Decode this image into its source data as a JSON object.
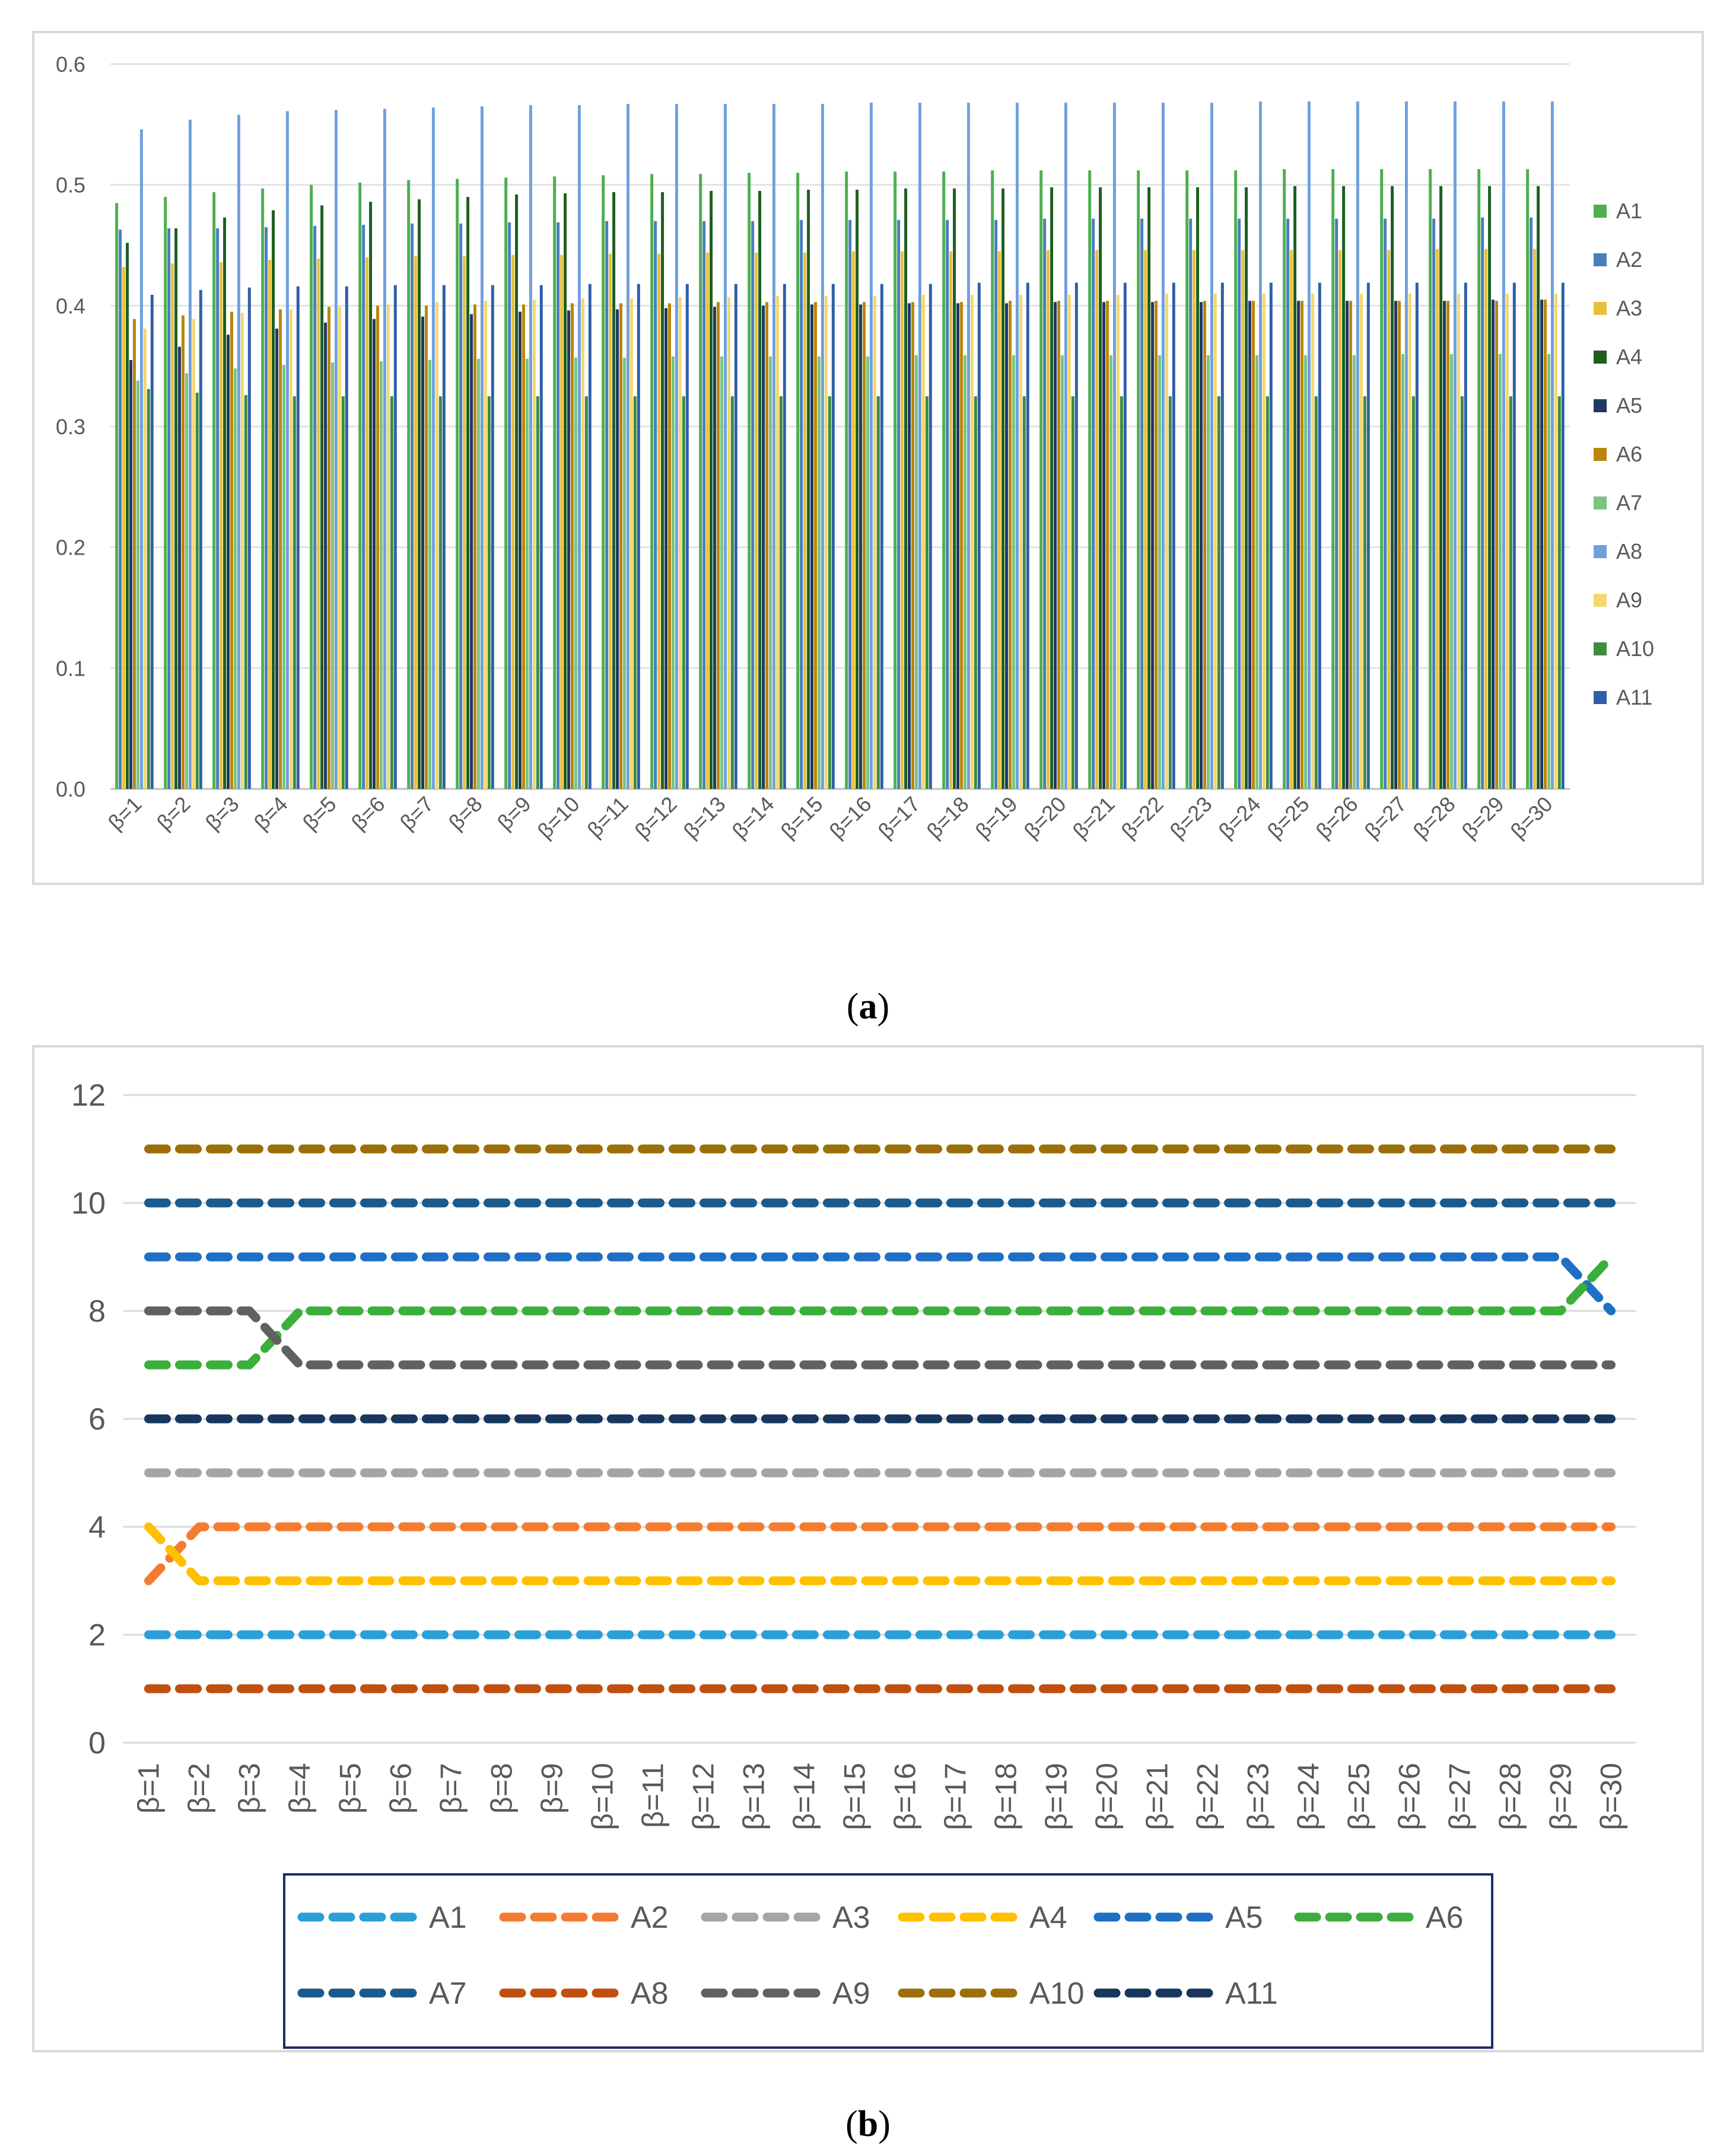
{
  "captions": {
    "a_open": "(",
    "a_letter": "a",
    "a_close": ")",
    "b_open": "(",
    "b_letter": "b",
    "b_close": ")"
  },
  "chart_data": [
    {
      "type": "bar",
      "title": "",
      "xlabel": "",
      "ylabel": "",
      "ylim": [
        0,
        0.6
      ],
      "yticks": [
        "0.0",
        "0.1",
        "0.2",
        "0.3",
        "0.4",
        "0.5",
        "0.6"
      ],
      "grid": true,
      "legend": "right",
      "categories": [
        "β=1",
        "β=2",
        "β=3",
        "β=4",
        "β=5",
        "β=6",
        "β=7",
        "β=8",
        "β=9",
        "β=10",
        "β=11",
        "β=12",
        "β=13",
        "β=14",
        "β=15",
        "β=16",
        "β=17",
        "β=18",
        "β=19",
        "β=20",
        "β=21",
        "β=22",
        "β=23",
        "β=24",
        "β=25",
        "β=26",
        "β=27",
        "β=28",
        "β=29",
        "β=30"
      ],
      "series": [
        {
          "name": "A1",
          "color": "#4caf50",
          "values": [
            0.485,
            0.49,
            0.494,
            0.497,
            0.5,
            0.502,
            0.504,
            0.505,
            0.506,
            0.507,
            0.508,
            0.509,
            0.509,
            0.51,
            0.51,
            0.511,
            0.511,
            0.511,
            0.512,
            0.512,
            0.512,
            0.512,
            0.512,
            0.512,
            0.513,
            0.513,
            0.513,
            0.513,
            0.513,
            0.513
          ]
        },
        {
          "name": "A2",
          "color": "#4a7ebb",
          "values": [
            0.463,
            0.464,
            0.464,
            0.465,
            0.466,
            0.467,
            0.468,
            0.468,
            0.469,
            0.469,
            0.47,
            0.47,
            0.47,
            0.47,
            0.471,
            0.471,
            0.471,
            0.471,
            0.471,
            0.472,
            0.472,
            0.472,
            0.472,
            0.472,
            0.472,
            0.472,
            0.472,
            0.472,
            0.473,
            0.473
          ]
        },
        {
          "name": "A3",
          "color": "#e8c13a",
          "values": [
            0.432,
            0.435,
            0.436,
            0.438,
            0.439,
            0.44,
            0.441,
            0.441,
            0.442,
            0.442,
            0.443,
            0.443,
            0.444,
            0.444,
            0.444,
            0.445,
            0.445,
            0.445,
            0.445,
            0.446,
            0.446,
            0.446,
            0.446,
            0.446,
            0.446,
            0.446,
            0.446,
            0.447,
            0.447,
            0.447
          ]
        },
        {
          "name": "A4",
          "color": "#1e5e1e",
          "values": [
            0.452,
            0.464,
            0.473,
            0.479,
            0.483,
            0.486,
            0.488,
            0.49,
            0.492,
            0.493,
            0.494,
            0.494,
            0.495,
            0.495,
            0.496,
            0.496,
            0.497,
            0.497,
            0.497,
            0.498,
            0.498,
            0.498,
            0.498,
            0.498,
            0.499,
            0.499,
            0.499,
            0.499,
            0.499,
            0.499
          ]
        },
        {
          "name": "A5",
          "color": "#1f3864",
          "values": [
            0.355,
            0.366,
            0.376,
            0.381,
            0.386,
            0.389,
            0.391,
            0.393,
            0.395,
            0.396,
            0.397,
            0.398,
            0.399,
            0.4,
            0.401,
            0.401,
            0.402,
            0.402,
            0.402,
            0.403,
            0.403,
            0.403,
            0.403,
            0.404,
            0.404,
            0.404,
            0.404,
            0.404,
            0.405,
            0.405
          ]
        },
        {
          "name": "A6",
          "color": "#b8860b",
          "values": [
            0.389,
            0.392,
            0.395,
            0.397,
            0.399,
            0.4,
            0.4,
            0.401,
            0.401,
            0.402,
            0.402,
            0.402,
            0.403,
            0.403,
            0.403,
            0.403,
            0.403,
            0.403,
            0.404,
            0.404,
            0.404,
            0.404,
            0.404,
            0.404,
            0.404,
            0.404,
            0.404,
            0.404,
            0.404,
            0.405
          ]
        },
        {
          "name": "A7",
          "color": "#7ac47f",
          "values": [
            0.338,
            0.344,
            0.348,
            0.351,
            0.353,
            0.354,
            0.355,
            0.356,
            0.356,
            0.357,
            0.357,
            0.358,
            0.358,
            0.358,
            0.358,
            0.358,
            0.359,
            0.359,
            0.359,
            0.359,
            0.359,
            0.359,
            0.359,
            0.359,
            0.359,
            0.359,
            0.36,
            0.36,
            0.36,
            0.36
          ]
        },
        {
          "name": "A8",
          "color": "#6fa0dc",
          "values": [
            0.546,
            0.554,
            0.558,
            0.561,
            0.562,
            0.563,
            0.564,
            0.565,
            0.566,
            0.566,
            0.567,
            0.567,
            0.567,
            0.567,
            0.567,
            0.568,
            0.568,
            0.568,
            0.568,
            0.568,
            0.568,
            0.568,
            0.568,
            0.569,
            0.569,
            0.569,
            0.569,
            0.569,
            0.569,
            0.569
          ]
        },
        {
          "name": "A9",
          "color": "#f5d76e",
          "values": [
            0.381,
            0.389,
            0.394,
            0.397,
            0.399,
            0.401,
            0.403,
            0.404,
            0.405,
            0.406,
            0.406,
            0.407,
            0.407,
            0.408,
            0.408,
            0.408,
            0.409,
            0.409,
            0.409,
            0.409,
            0.409,
            0.41,
            0.41,
            0.41,
            0.41,
            0.41,
            0.41,
            0.41,
            0.41,
            0.41
          ]
        },
        {
          "name": "A10",
          "color": "#3d8b3d",
          "values": [
            0.331,
            0.328,
            0.326,
            0.325,
            0.325,
            0.325,
            0.325,
            0.325,
            0.325,
            0.325,
            0.325,
            0.325,
            0.325,
            0.325,
            0.325,
            0.325,
            0.325,
            0.325,
            0.325,
            0.325,
            0.325,
            0.325,
            0.325,
            0.325,
            0.325,
            0.325,
            0.325,
            0.325,
            0.325,
            0.325
          ]
        },
        {
          "name": "A11",
          "color": "#2e5fa8",
          "values": [
            0.409,
            0.413,
            0.415,
            0.416,
            0.416,
            0.417,
            0.417,
            0.417,
            0.417,
            0.418,
            0.418,
            0.418,
            0.418,
            0.418,
            0.418,
            0.418,
            0.418,
            0.419,
            0.419,
            0.419,
            0.419,
            0.419,
            0.419,
            0.419,
            0.419,
            0.419,
            0.419,
            0.419,
            0.419,
            0.419
          ]
        }
      ]
    },
    {
      "type": "line",
      "title": "",
      "xlabel": "",
      "ylabel": "",
      "ylim": [
        0,
        12
      ],
      "yticks": [
        "0",
        "2",
        "4",
        "6",
        "8",
        "10",
        "12"
      ],
      "grid": true,
      "legend": "bottom",
      "categories": [
        "β=1",
        "β=2",
        "β=3",
        "β=4",
        "β=5",
        "β=6",
        "β=7",
        "β=8",
        "β=9",
        "β=10",
        "β=11",
        "β=12",
        "β=13",
        "β=14",
        "β=15",
        "β=16",
        "β=17",
        "β=18",
        "β=19",
        "β=20",
        "β=21",
        "β=22",
        "β=23",
        "β=24",
        "β=25",
        "β=26",
        "β=27",
        "β=28",
        "β=29",
        "β=30"
      ],
      "series": [
        {
          "name": "A1",
          "color": "#2a9fd8",
          "values": [
            2,
            2,
            2,
            2,
            2,
            2,
            2,
            2,
            2,
            2,
            2,
            2,
            2,
            2,
            2,
            2,
            2,
            2,
            2,
            2,
            2,
            2,
            2,
            2,
            2,
            2,
            2,
            2,
            2,
            2
          ]
        },
        {
          "name": "A2",
          "color": "#f47c30",
          "values": [
            3,
            4,
            4,
            4,
            4,
            4,
            4,
            4,
            4,
            4,
            4,
            4,
            4,
            4,
            4,
            4,
            4,
            4,
            4,
            4,
            4,
            4,
            4,
            4,
            4,
            4,
            4,
            4,
            4,
            4
          ]
        },
        {
          "name": "A3",
          "color": "#a5a5a5",
          "values": [
            5,
            5,
            5,
            5,
            5,
            5,
            5,
            5,
            5,
            5,
            5,
            5,
            5,
            5,
            5,
            5,
            5,
            5,
            5,
            5,
            5,
            5,
            5,
            5,
            5,
            5,
            5,
            5,
            5,
            5
          ]
        },
        {
          "name": "A4",
          "color": "#ffc000",
          "values": [
            4,
            3,
            3,
            3,
            3,
            3,
            3,
            3,
            3,
            3,
            3,
            3,
            3,
            3,
            3,
            3,
            3,
            3,
            3,
            3,
            3,
            3,
            3,
            3,
            3,
            3,
            3,
            3,
            3,
            3
          ]
        },
        {
          "name": "A5",
          "color": "#1f6fc6",
          "values": [
            9,
            9,
            9,
            9,
            9,
            9,
            9,
            9,
            9,
            9,
            9,
            9,
            9,
            9,
            9,
            9,
            9,
            9,
            9,
            9,
            9,
            9,
            9,
            9,
            9,
            9,
            9,
            9,
            9,
            8
          ]
        },
        {
          "name": "A6",
          "color": "#3cae3c",
          "values": [
            7,
            7,
            7,
            8,
            8,
            8,
            8,
            8,
            8,
            8,
            8,
            8,
            8,
            8,
            8,
            8,
            8,
            8,
            8,
            8,
            8,
            8,
            8,
            8,
            8,
            8,
            8,
            8,
            8,
            9
          ]
        },
        {
          "name": "A7",
          "color": "#1a5a8c",
          "values": [
            10,
            10,
            10,
            10,
            10,
            10,
            10,
            10,
            10,
            10,
            10,
            10,
            10,
            10,
            10,
            10,
            10,
            10,
            10,
            10,
            10,
            10,
            10,
            10,
            10,
            10,
            10,
            10,
            10,
            10
          ]
        },
        {
          "name": "A8",
          "color": "#c0500f",
          "values": [
            1,
            1,
            1,
            1,
            1,
            1,
            1,
            1,
            1,
            1,
            1,
            1,
            1,
            1,
            1,
            1,
            1,
            1,
            1,
            1,
            1,
            1,
            1,
            1,
            1,
            1,
            1,
            1,
            1,
            1
          ]
        },
        {
          "name": "A9",
          "color": "#616161",
          "values": [
            8,
            8,
            8,
            7,
            7,
            7,
            7,
            7,
            7,
            7,
            7,
            7,
            7,
            7,
            7,
            7,
            7,
            7,
            7,
            7,
            7,
            7,
            7,
            7,
            7,
            7,
            7,
            7,
            7,
            7
          ]
        },
        {
          "name": "A10",
          "color": "#9c6f0a",
          "values": [
            11,
            11,
            11,
            11,
            11,
            11,
            11,
            11,
            11,
            11,
            11,
            11,
            11,
            11,
            11,
            11,
            11,
            11,
            11,
            11,
            11,
            11,
            11,
            11,
            11,
            11,
            11,
            11,
            11,
            11
          ]
        },
        {
          "name": "A11",
          "color": "#17375e",
          "values": [
            6,
            6,
            6,
            6,
            6,
            6,
            6,
            6,
            6,
            6,
            6,
            6,
            6,
            6,
            6,
            6,
            6,
            6,
            6,
            6,
            6,
            6,
            6,
            6,
            6,
            6,
            6,
            6,
            6,
            6
          ]
        }
      ]
    }
  ]
}
